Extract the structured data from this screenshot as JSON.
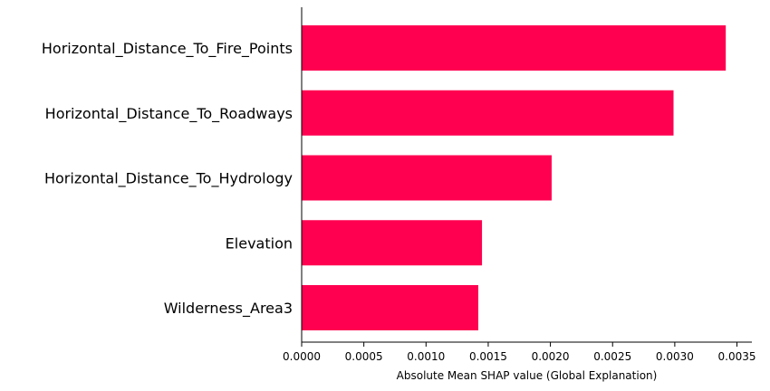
{
  "chart_data": {
    "type": "bar",
    "orientation": "horizontal",
    "categories": [
      "Horizontal_Distance_To_Fire_Points",
      "Horizontal_Distance_To_Roadways",
      "Horizontal_Distance_To_Hydrology",
      "Elevation",
      "Wilderness_Area3"
    ],
    "values": [
      0.00341,
      0.00299,
      0.00201,
      0.00145,
      0.00142
    ],
    "xlabel": "Absolute Mean SHAP value (Global Explanation)",
    "ylabel": "",
    "xlim": [
      0,
      0.00362
    ],
    "xticks": [
      0.0,
      0.0005,
      0.001,
      0.0015,
      0.002,
      0.0025,
      0.003,
      0.0035
    ],
    "xtick_labels": [
      "0.0000",
      "0.0005",
      "0.0010",
      "0.0015",
      "0.0020",
      "0.0025",
      "0.0030",
      "0.0035"
    ],
    "bar_color": "#ff0051",
    "grid": false,
    "legend": "none"
  }
}
